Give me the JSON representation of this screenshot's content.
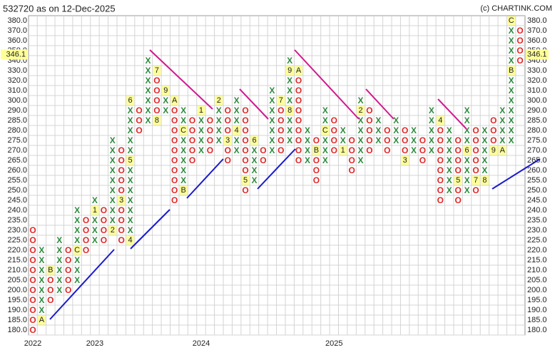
{
  "chart_data": {
    "type": "pnf",
    "title": "532720 as on 12-Dec-2025",
    "source": "(c) CHARTINK.COM",
    "x_color": "#2e8b3e",
    "o_color": "#e02828",
    "marker_fill": "#ffff99",
    "last_price": {
      "value": 346.1,
      "label": "346.1"
    },
    "grid": true,
    "yticks": [
      {
        "value": 380,
        "label": "380.0"
      },
      {
        "value": 370,
        "label": "370.0"
      },
      {
        "value": 360,
        "label": "360.0"
      },
      {
        "value": 350,
        "label": "350.0"
      },
      {
        "value": 340,
        "label": "340.0"
      },
      {
        "value": 330,
        "label": "330.0"
      },
      {
        "value": 320,
        "label": "320.0"
      },
      {
        "value": 310,
        "label": "310.0"
      },
      {
        "value": 300,
        "label": "300.0"
      },
      {
        "value": 290,
        "label": "290.0"
      },
      {
        "value": 285,
        "label": "285.0"
      },
      {
        "value": 280,
        "label": "280.0"
      },
      {
        "value": 275,
        "label": "275.0"
      },
      {
        "value": 270,
        "label": "270.0"
      },
      {
        "value": 265,
        "label": "265.0"
      },
      {
        "value": 260,
        "label": "260.0"
      },
      {
        "value": 255,
        "label": "255.0"
      },
      {
        "value": 250,
        "label": "250.0"
      },
      {
        "value": 245,
        "label": "245.0"
      },
      {
        "value": 240,
        "label": "240.0"
      },
      {
        "value": 235,
        "label": "235.0"
      },
      {
        "value": 230,
        "label": "230.0"
      },
      {
        "value": 225,
        "label": "225.0"
      },
      {
        "value": 220,
        "label": "220.0"
      },
      {
        "value": 215,
        "label": "215.0"
      },
      {
        "value": 210,
        "label": "210.0"
      },
      {
        "value": 205,
        "label": "205.0"
      },
      {
        "value": 200,
        "label": "200.0"
      },
      {
        "value": 195,
        "label": "195.0"
      },
      {
        "value": 190,
        "label": "190.0"
      },
      {
        "value": 185,
        "label": "185.0"
      },
      {
        "value": 180,
        "label": "180.0"
      }
    ],
    "categories": [
      "2022",
      null,
      null,
      null,
      null,
      null,
      null,
      "2023",
      null,
      null,
      null,
      null,
      null,
      null,
      null,
      null,
      null,
      null,
      null,
      "2024",
      null,
      null,
      null,
      null,
      null,
      null,
      null,
      null,
      null,
      null,
      null,
      null,
      null,
      null,
      "2025",
      null,
      null,
      null,
      null,
      null,
      null,
      null,
      null,
      null,
      null,
      null,
      null,
      null,
      null,
      null,
      null,
      null,
      null,
      null,
      null,
      null
    ],
    "columns": [
      {
        "kind": "O",
        "low": 180,
        "high": 230
      },
      {
        "kind": "X",
        "low": 185,
        "high": 220,
        "markers": [
          {
            "level": 185,
            "label": "A"
          }
        ]
      },
      {
        "kind": "O",
        "low": 195,
        "high": 210,
        "markers": [
          {
            "level": 210,
            "label": "B"
          }
        ]
      },
      {
        "kind": "X",
        "low": 200,
        "high": 225
      },
      {
        "kind": "O",
        "low": 200,
        "high": 220
      },
      {
        "kind": "X",
        "low": 205,
        "high": 240,
        "markers": [
          {
            "level": 220,
            "label": "C"
          }
        ]
      },
      {
        "kind": "O",
        "low": 220,
        "high": 235
      },
      {
        "kind": "X",
        "low": 225,
        "high": 245,
        "markers": [
          {
            "level": 240,
            "label": "1"
          }
        ]
      },
      {
        "kind": "O",
        "low": 225,
        "high": 240
      },
      {
        "kind": "X",
        "low": 230,
        "high": 275,
        "markers": [
          {
            "level": 230,
            "label": "2"
          }
        ]
      },
      {
        "kind": "O",
        "low": 225,
        "high": 270,
        "markers": [
          {
            "level": 245,
            "label": "3"
          }
        ]
      },
      {
        "kind": "X",
        "low": 225,
        "high": 300,
        "markers": [
          {
            "level": 225,
            "label": "4"
          },
          {
            "level": 265,
            "label": "5"
          },
          {
            "level": 300,
            "label": "6"
          }
        ]
      },
      {
        "kind": "O",
        "low": 280,
        "high": 290
      },
      {
        "kind": "X",
        "low": 285,
        "high": 340
      },
      {
        "kind": "O",
        "low": 285,
        "high": 330,
        "markers": [
          {
            "level": 330,
            "label": "7"
          },
          {
            "level": 285,
            "label": "8"
          }
        ]
      },
      {
        "kind": "X",
        "low": 290,
        "high": 310,
        "markers": [
          {
            "level": 310,
            "label": "9"
          }
        ]
      },
      {
        "kind": "O",
        "low": 245,
        "high": 300,
        "markers": [
          {
            "level": 300,
            "label": "A"
          }
        ]
      },
      {
        "kind": "X",
        "low": 250,
        "high": 290,
        "markers": [
          {
            "level": 250,
            "label": "B"
          },
          {
            "level": 280,
            "label": "C"
          }
        ]
      },
      {
        "kind": "O",
        "low": 265,
        "high": 285
      },
      {
        "kind": "X",
        "low": 270,
        "high": 290,
        "markers": [
          {
            "level": 290,
            "label": "1"
          }
        ]
      },
      {
        "kind": "O",
        "low": 270,
        "high": 285
      },
      {
        "kind": "X",
        "low": 275,
        "high": 300,
        "markers": [
          {
            "level": 300,
            "label": "2"
          }
        ]
      },
      {
        "kind": "O",
        "low": 265,
        "high": 290,
        "markers": [
          {
            "level": 275,
            "label": "3"
          }
        ]
      },
      {
        "kind": "X",
        "low": 270,
        "high": 300,
        "markers": [
          {
            "level": 280,
            "label": "4"
          }
        ]
      },
      {
        "kind": "O",
        "low": 250,
        "high": 290,
        "markers": [
          {
            "level": 255,
            "label": "5"
          }
        ]
      },
      {
        "kind": "X",
        "low": 255,
        "high": 275,
        "markers": [
          {
            "level": 275,
            "label": "6"
          }
        ]
      },
      {
        "kind": "O",
        "low": 265,
        "high": 270
      },
      {
        "kind": "X",
        "low": 270,
        "high": 310
      },
      {
        "kind": "O",
        "low": 270,
        "high": 300,
        "markers": [
          {
            "level": 300,
            "label": "7"
          }
        ]
      },
      {
        "kind": "X",
        "low": 275,
        "high": 340,
        "markers": [
          {
            "level": 290,
            "label": "8"
          },
          {
            "level": 330,
            "label": "9"
          }
        ]
      },
      {
        "kind": "O",
        "low": 265,
        "high": 330,
        "markers": [
          {
            "level": 330,
            "label": "A"
          }
        ]
      },
      {
        "kind": "X",
        "low": 265,
        "high": 280
      },
      {
        "kind": "O",
        "low": 255,
        "high": 275,
        "markers": [
          {
            "level": 270,
            "label": "B"
          }
        ]
      },
      {
        "kind": "X",
        "low": 265,
        "high": 290,
        "markers": [
          {
            "level": 280,
            "label": "C"
          }
        ]
      },
      {
        "kind": "O",
        "low": 270,
        "high": 285
      },
      {
        "kind": "X",
        "low": 270,
        "high": 280,
        "markers": [
          {
            "level": 270,
            "label": "1"
          }
        ]
      },
      {
        "kind": "O",
        "low": 260,
        "high": 275
      },
      {
        "kind": "X",
        "low": 265,
        "high": 300,
        "markers": [
          {
            "level": 290,
            "label": "2"
          }
        ]
      },
      {
        "kind": "O",
        "low": 270,
        "high": 290
      },
      {
        "kind": "X",
        "low": 275,
        "high": 285
      },
      {
        "kind": "O",
        "low": 270,
        "high": 280
      },
      {
        "kind": "X",
        "low": 275,
        "high": 285
      },
      {
        "kind": "O",
        "low": 265,
        "high": 280,
        "markers": [
          {
            "level": 265,
            "label": "3"
          }
        ]
      },
      {
        "kind": "X",
        "low": 270,
        "high": 280
      },
      {
        "kind": "O",
        "low": 265,
        "high": 275
      },
      {
        "kind": "X",
        "low": 270,
        "high": 290
      },
      {
        "kind": "O",
        "low": 245,
        "high": 285,
        "markers": [
          {
            "level": 285,
            "label": "4"
          }
        ]
      },
      {
        "kind": "X",
        "low": 250,
        "high": 280
      },
      {
        "kind": "O",
        "low": 245,
        "high": 275,
        "markers": [
          {
            "level": 255,
            "label": "5"
          }
        ]
      },
      {
        "kind": "X",
        "low": 250,
        "high": 290,
        "markers": [
          {
            "level": 270,
            "label": "6"
          }
        ]
      },
      {
        "kind": "O",
        "low": 250,
        "high": 280,
        "markers": [
          {
            "level": 255,
            "label": "7"
          }
        ]
      },
      {
        "kind": "X",
        "low": 255,
        "high": 280,
        "markers": [
          {
            "level": 255,
            "label": "8"
          }
        ]
      },
      {
        "kind": "O",
        "low": 270,
        "high": 285,
        "markers": [
          {
            "level": 270,
            "label": "9"
          }
        ]
      },
      {
        "kind": "X",
        "low": 270,
        "high": 290,
        "markers": [
          {
            "level": 270,
            "label": "A"
          }
        ]
      },
      {
        "kind": "X",
        "low": 275,
        "high": 380,
        "markers": [
          {
            "level": 330,
            "label": "B"
          },
          {
            "level": 380,
            "label": "C"
          }
        ]
      },
      {
        "kind": "O",
        "low": 340,
        "high": 370
      }
    ]
  }
}
